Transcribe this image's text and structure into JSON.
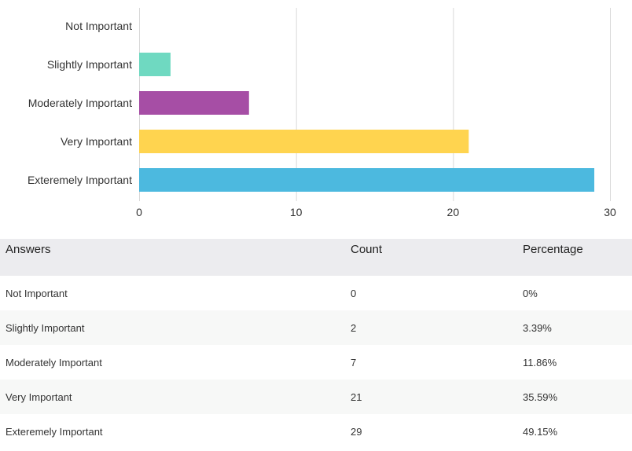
{
  "chart_data": {
    "type": "bar",
    "orientation": "horizontal",
    "categories": [
      "Not Important",
      "Slightly Important",
      "Moderately Important",
      "Very Important",
      "Exteremely Important"
    ],
    "values": [
      0,
      2,
      7,
      21,
      29
    ],
    "colors": [
      "#8fd3c8",
      "#6fd9c1",
      "#a64ea5",
      "#ffd44f",
      "#4cb9df"
    ],
    "xlim": [
      0,
      30
    ],
    "xticks": [
      0,
      10,
      20,
      30
    ],
    "grid": true,
    "title": "",
    "xlabel": "",
    "ylabel": ""
  },
  "table": {
    "headers": [
      "Answers",
      "Count",
      "Percentage"
    ],
    "rows": [
      {
        "answer": "Not Important",
        "count": "0",
        "percentage": "0%"
      },
      {
        "answer": "Slightly Important",
        "count": "2",
        "percentage": "3.39%"
      },
      {
        "answer": "Moderately Important",
        "count": "7",
        "percentage": "11.86%"
      },
      {
        "answer": "Very Important",
        "count": "21",
        "percentage": "35.59%"
      },
      {
        "answer": "Exteremely Important",
        "count": "29",
        "percentage": "49.15%"
      }
    ]
  }
}
